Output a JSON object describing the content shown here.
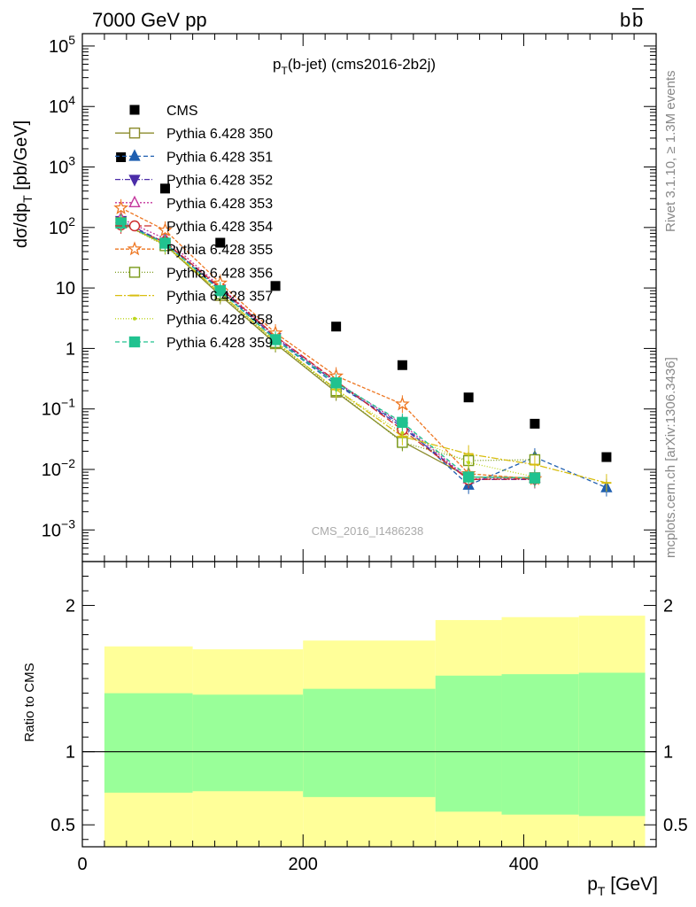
{
  "header": {
    "left_label": "7000 GeV pp",
    "right_label": "b",
    "right_label_bar": "b"
  },
  "side_labels": {
    "rivet": "Rivet 3.1.10, ≥ 1.3M events",
    "mcplots": "mcplots.cern.ch [arXiv:1306.3436]"
  },
  "watermark": "CMS_2016_I1486238",
  "chart_data": [
    {
      "type": "scatter",
      "title_main": "p",
      "title_sub": "T",
      "title_rest": "(b-jet) (cms2016-2b2j)",
      "ylabel_main": "dσ/dp",
      "ylabel_sub": "T",
      "ylabel_rest": " [pb/GeV]",
      "yscale": "log",
      "xlim": [
        0,
        520
      ],
      "ylim": [
        0.0003,
        160000
      ],
      "y_ticks": [
        {
          "v": 0.001,
          "m": "10",
          "e": "−3"
        },
        {
          "v": 0.01,
          "m": "10",
          "e": "−2"
        },
        {
          "v": 0.1,
          "m": "10",
          "e": "−1"
        },
        {
          "v": 1,
          "m": "1",
          "e": ""
        },
        {
          "v": 10,
          "m": "10",
          "e": ""
        },
        {
          "v": 100,
          "m": "10",
          "e": "2"
        },
        {
          "v": 1000,
          "m": "10",
          "e": "3"
        },
        {
          "v": 10000,
          "m": "10",
          "e": "4"
        },
        {
          "v": 100000,
          "m": "10",
          "e": "5"
        }
      ],
      "legend_position": "top-left",
      "data": {
        "name": "CMS",
        "x": [
          35,
          75,
          125,
          175,
          230,
          290,
          350,
          410,
          475
        ],
        "y": [
          1450,
          440,
          56,
          10.8,
          2.3,
          0.53,
          0.155,
          0.057,
          0.016
        ]
      },
      "series": [
        {
          "name": "Pythia 6.428 350",
          "color": "#8c8c2d",
          "marker": "square-open",
          "dash": "",
          "x": [
            35,
            75,
            125,
            175,
            230,
            290,
            350,
            410
          ],
          "y": [
            120,
            52,
            7.5,
            1.2,
            0.19,
            0.029,
            0.0075,
            0.0073
          ]
        },
        {
          "name": "Pythia 6.428 351",
          "color": "#1f5fb0",
          "marker": "triangle-up",
          "dash": "5,3",
          "x": [
            35,
            75,
            125,
            175,
            230,
            290,
            350,
            410,
            475
          ],
          "y": [
            125,
            55,
            9,
            1.4,
            0.25,
            0.055,
            0.0055,
            0.016,
            0.005
          ]
        },
        {
          "name": "Pythia 6.428 352",
          "color": "#4b2ca8",
          "marker": "triangle-down",
          "dash": "6,2,1,2",
          "x": [
            35,
            75,
            125,
            175,
            230,
            290,
            350,
            410
          ],
          "y": [
            130,
            56,
            9.5,
            1.5,
            0.27,
            0.05,
            0.0068,
            0.0068
          ]
        },
        {
          "name": "Pythia 6.428 353",
          "color": "#c4369c",
          "marker": "triangle-up-open",
          "dash": "2,2",
          "x": [
            35,
            75,
            125,
            175,
            230,
            290,
            350,
            410
          ],
          "y": [
            140,
            65,
            10.5,
            1.6,
            0.28,
            0.056,
            0.007,
            0.0072
          ]
        },
        {
          "name": "Pythia 6.428 354",
          "color": "#cc2a2a",
          "marker": "circle-open",
          "dash": "8,3",
          "x": [
            35,
            75,
            125,
            175,
            230,
            290,
            350,
            410
          ],
          "y": [
            110,
            58,
            10,
            1.6,
            0.29,
            0.045,
            0.0068,
            0.007
          ]
        },
        {
          "name": "Pythia 6.428 355",
          "color": "#ee7722",
          "marker": "star-open",
          "dash": "4,2",
          "x": [
            35,
            75,
            125,
            175,
            230,
            290,
            350,
            410
          ],
          "y": [
            210,
            90,
            12,
            1.8,
            0.35,
            0.12,
            0.0085,
            0.007
          ]
        },
        {
          "name": "Pythia 6.428 356",
          "color": "#7a9a1a",
          "marker": "square-open",
          "dash": "1,2",
          "x": [
            35,
            75,
            125,
            175,
            230,
            290,
            350,
            410
          ],
          "y": [
            120,
            50,
            8,
            1.25,
            0.2,
            0.028,
            0.014,
            0.0145
          ]
        },
        {
          "name": "Pythia 6.428 357",
          "color": "#d8be10",
          "marker": "dash",
          "dash": "8,2,2,2",
          "x": [
            35,
            75,
            125,
            175,
            230,
            290,
            350,
            410,
            475
          ],
          "y": [
            120,
            52,
            8.2,
            1.3,
            0.21,
            0.035,
            0.018,
            0.012,
            0.006
          ]
        },
        {
          "name": "Pythia 6.428 358",
          "color": "#bcd61c",
          "marker": "dot",
          "dash": "1,2",
          "x": [
            35,
            75,
            125,
            175,
            230,
            290,
            350,
            410
          ],
          "y": [
            118,
            52,
            8.2,
            1.3,
            0.21,
            0.04,
            0.013,
            0.0075
          ]
        },
        {
          "name": "Pythia 6.428 359",
          "color": "#20c28f",
          "marker": "square",
          "dash": "5,3",
          "x": [
            35,
            75,
            125,
            175,
            230,
            290,
            350,
            410
          ],
          "y": [
            118,
            55,
            9,
            1.4,
            0.27,
            0.06,
            0.0075,
            0.0072
          ]
        }
      ]
    },
    {
      "type": "area",
      "ylabel": "Ratio to CMS",
      "xlabel_main": "p",
      "xlabel_sub": "T",
      "xlabel_rest": " [GeV]",
      "xlim": [
        0,
        520
      ],
      "ylim": [
        0.35,
        2.3
      ],
      "x_ticks": [
        "0",
        "200",
        "400"
      ],
      "x_tick_values": [
        0,
        200,
        400
      ],
      "y_ticks": [
        "0.5",
        "1",
        "2"
      ],
      "y_tick_values": [
        0.5,
        1,
        2
      ],
      "reference_line": 1,
      "bins": [
        {
          "x0": 20,
          "x1": 100,
          "inner": [
            0.72,
            1.4
          ],
          "outer": [
            0.35,
            1.72
          ]
        },
        {
          "x0": 100,
          "x1": 200,
          "inner": [
            0.73,
            1.39
          ],
          "outer": [
            0.35,
            1.7
          ]
        },
        {
          "x0": 200,
          "x1": 320,
          "inner": [
            0.69,
            1.43
          ],
          "outer": [
            0.35,
            1.76
          ]
        },
        {
          "x0": 320,
          "x1": 380,
          "inner": [
            0.59,
            1.52
          ],
          "outer": [
            0.35,
            1.9
          ]
        },
        {
          "x0": 380,
          "x1": 450,
          "inner": [
            0.57,
            1.53
          ],
          "outer": [
            0.35,
            1.92
          ]
        },
        {
          "x0": 450,
          "x1": 510,
          "inner": [
            0.56,
            1.54
          ],
          "outer": [
            0.35,
            1.93
          ]
        }
      ]
    }
  ]
}
